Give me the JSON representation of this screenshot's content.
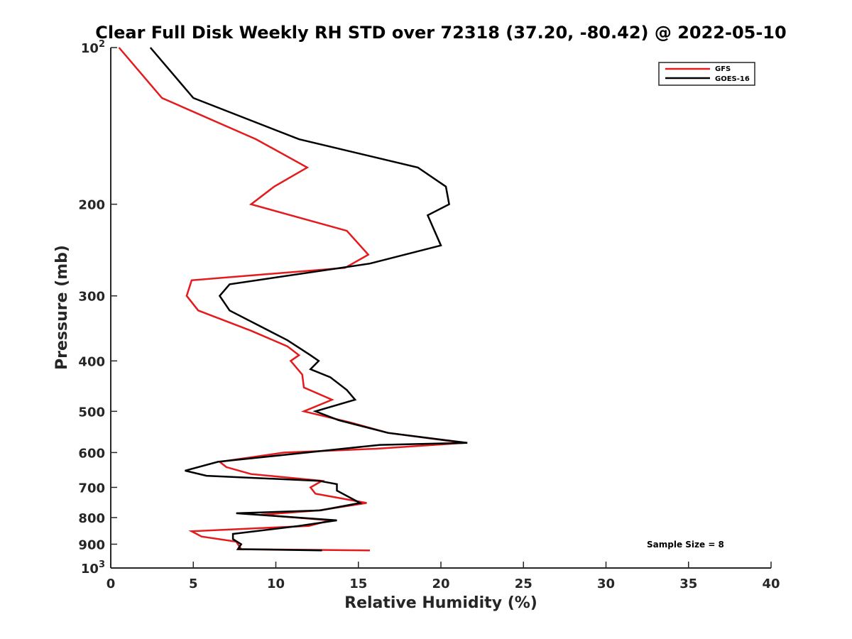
{
  "chart_data": {
    "type": "line",
    "title": "Clear Full Disk Weekly RH STD over 72318 (37.20, -80.42) @ 2022-05-10",
    "xlabel": "Relative Humidity (%)",
    "ylabel": "Pressure (mb)",
    "xlim": [
      0,
      40
    ],
    "ylim": [
      100,
      1000
    ],
    "y_scale": "log",
    "y_reversed": true,
    "grid": false,
    "legend_position": "top-right",
    "x_ticks": [
      "0",
      "5",
      "10",
      "15",
      "20",
      "25",
      "30",
      "35",
      "40"
    ],
    "y_ticks": [
      {
        "value": 100,
        "base": "10",
        "exp": "2"
      },
      {
        "value": 200,
        "label": "200"
      },
      {
        "value": 300,
        "label": "300"
      },
      {
        "value": 400,
        "label": "400"
      },
      {
        "value": 500,
        "label": "500"
      },
      {
        "value": 600,
        "label": "600"
      },
      {
        "value": 700,
        "label": "700"
      },
      {
        "value": 800,
        "label": "800"
      },
      {
        "value": 900,
        "label": "900"
      },
      {
        "value": 1000,
        "base": "10",
        "exp": "3"
      }
    ],
    "annotation": "Sample Size = 8",
    "series": [
      {
        "name": "GFS",
        "color": "#e41a1c",
        "points": [
          [
            0.5,
            100
          ],
          [
            3.1,
            125
          ],
          [
            8.8,
            150
          ],
          [
            11.9,
            170
          ],
          [
            9.9,
            185
          ],
          [
            8.5,
            200
          ],
          [
            14.3,
            225
          ],
          [
            15.6,
            250
          ],
          [
            14.2,
            265
          ],
          [
            4.9,
            280
          ],
          [
            4.6,
            300
          ],
          [
            5.3,
            320
          ],
          [
            8.5,
            350
          ],
          [
            10.7,
            375
          ],
          [
            11.4,
            390
          ],
          [
            10.9,
            400
          ],
          [
            11.6,
            425
          ],
          [
            11.7,
            450
          ],
          [
            13.4,
            475
          ],
          [
            11.7,
            500
          ],
          [
            14.5,
            525
          ],
          [
            16.8,
            550
          ],
          [
            21.4,
            575
          ],
          [
            16.1,
            590
          ],
          [
            10.5,
            600
          ],
          [
            6.6,
            625
          ],
          [
            7.0,
            640
          ],
          [
            8.5,
            660
          ],
          [
            12.8,
            680
          ],
          [
            12.1,
            700
          ],
          [
            12.4,
            720
          ],
          [
            15.5,
            750
          ],
          [
            12.6,
            775
          ],
          [
            9.1,
            790
          ],
          [
            13.3,
            810
          ],
          [
            12.0,
            830
          ],
          [
            4.9,
            850
          ],
          [
            5.5,
            870
          ],
          [
            7.6,
            890
          ],
          [
            7.9,
            920
          ],
          [
            15.7,
            925
          ]
        ]
      },
      {
        "name": "GOES-16",
        "color": "#000000",
        "points": [
          [
            2.4,
            100
          ],
          [
            5.0,
            125
          ],
          [
            11.4,
            150
          ],
          [
            18.6,
            170
          ],
          [
            20.3,
            185
          ],
          [
            20.5,
            200
          ],
          [
            19.2,
            210
          ],
          [
            20.0,
            240
          ],
          [
            15.7,
            260
          ],
          [
            7.2,
            285
          ],
          [
            6.6,
            300
          ],
          [
            7.2,
            320
          ],
          [
            10.7,
            365
          ],
          [
            12.1,
            390
          ],
          [
            12.6,
            400
          ],
          [
            12.1,
            415
          ],
          [
            13.3,
            430
          ],
          [
            14.3,
            455
          ],
          [
            14.8,
            475
          ],
          [
            12.4,
            500
          ],
          [
            13.8,
            520
          ],
          [
            16.8,
            550
          ],
          [
            21.6,
            575
          ],
          [
            16.3,
            580
          ],
          [
            6.5,
            625
          ],
          [
            4.5,
            650
          ],
          [
            5.8,
            665
          ],
          [
            12.6,
            680
          ],
          [
            13.7,
            690
          ],
          [
            13.7,
            710
          ],
          [
            15.1,
            750
          ],
          [
            12.7,
            775
          ],
          [
            7.6,
            785
          ],
          [
            13.7,
            810
          ],
          [
            11.4,
            830
          ],
          [
            7.4,
            860
          ],
          [
            7.4,
            880
          ],
          [
            7.9,
            900
          ],
          [
            7.7,
            920
          ],
          [
            12.8,
            925
          ]
        ]
      }
    ]
  }
}
